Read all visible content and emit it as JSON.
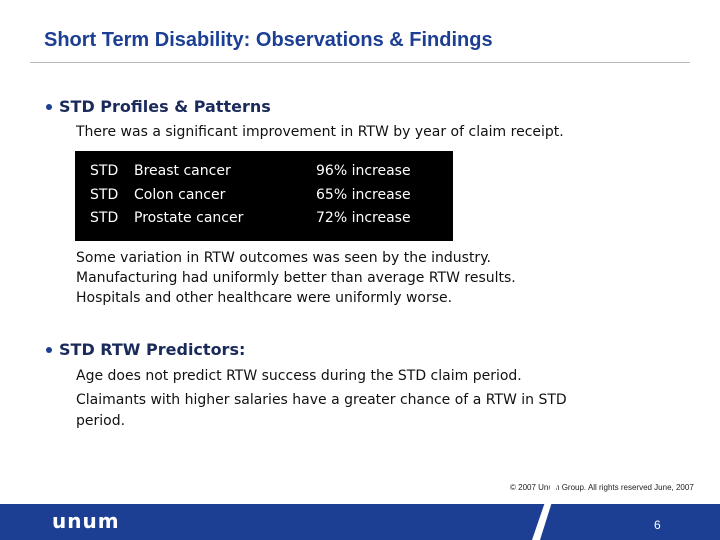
{
  "header": {
    "title": "Short Term Disability: Observations & Findings"
  },
  "sections": [
    {
      "heading": "STD Profiles & Patterns",
      "paragraphs": [
        "There was a significant improvement in RTW by year of claim receipt."
      ],
      "table": {
        "rows": [
          [
            "STD",
            "Breast cancer",
            "96% increase"
          ],
          [
            "STD",
            "Colon cancer",
            "65% increase"
          ],
          [
            "STD",
            "Prostate cancer",
            "72% increase"
          ]
        ]
      },
      "notes": [
        "Some variation in RTW outcomes was seen by the industry.",
        "Manufacturing had uniformly better than average RTW results.",
        "Hospitals and other healthcare were uniformly worse."
      ]
    },
    {
      "heading": "STD RTW Predictors:",
      "paragraphs": [
        "Age does not predict RTW success during the STD claim period.",
        "Claimants with higher salaries have a greater chance of a RTW in STD period."
      ]
    }
  ],
  "footer": {
    "copyright": "© 2007 Unum Group. All rights reserved June, 2007",
    "logo": "unum",
    "page": "6"
  }
}
